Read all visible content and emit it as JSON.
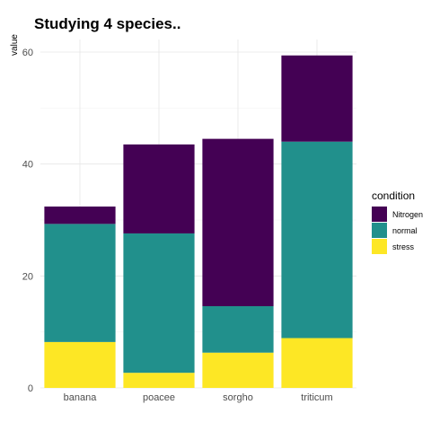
{
  "chart_data": {
    "type": "bar",
    "stacked": true,
    "title": "Studying 4 species..",
    "xlabel": "",
    "ylabel": "value",
    "categories": [
      "banana",
      "poacee",
      "sorgho",
      "triticum"
    ],
    "ylim": [
      0,
      62
    ],
    "yticks": [
      "0",
      "20",
      "40",
      "60"
    ],
    "grid": true,
    "legend": {
      "title": "condition",
      "placement": "right"
    },
    "series": [
      {
        "name": "stress",
        "color": "#FDE725",
        "values": [
          8.2,
          2.7,
          6.3,
          8.9
        ]
      },
      {
        "name": "normal",
        "color": "#21908C",
        "values": [
          21.1,
          24.9,
          8.3,
          35.1
        ]
      },
      {
        "name": "Nitrogen",
        "color": "#440154",
        "values": [
          3.1,
          15.9,
          29.9,
          15.4
        ]
      }
    ],
    "legend_order": [
      "Nitrogen",
      "normal",
      "stress"
    ]
  }
}
